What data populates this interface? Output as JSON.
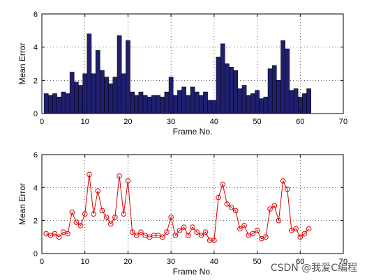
{
  "watermark": "CSDN @我爱C编程",
  "colors": {
    "bar_fill": "#1f1f6e",
    "line_color": "#dd0000",
    "background": "#ffffff"
  },
  "chart_data": [
    {
      "type": "bar",
      "xlabel": "Frame No.",
      "ylabel": "Mean Error",
      "xlim": [
        0,
        70
      ],
      "ylim": [
        0,
        6
      ],
      "xticks": [
        0,
        10,
        20,
        30,
        40,
        50,
        60,
        70
      ],
      "yticks": [
        0,
        2,
        4,
        6
      ],
      "grid": true,
      "x": [
        1,
        2,
        3,
        4,
        5,
        6,
        7,
        8,
        9,
        10,
        11,
        12,
        13,
        14,
        15,
        16,
        17,
        18,
        19,
        20,
        21,
        22,
        23,
        24,
        25,
        26,
        27,
        28,
        29,
        30,
        31,
        32,
        33,
        34,
        35,
        36,
        37,
        38,
        39,
        40,
        41,
        42,
        43,
        44,
        45,
        46,
        47,
        48,
        49,
        50,
        51,
        52,
        53,
        54,
        55,
        56,
        57,
        58,
        59,
        60,
        61,
        62
      ],
      "values": [
        1.2,
        1.1,
        1.2,
        1.0,
        1.3,
        1.2,
        2.5,
        1.9,
        1.7,
        2.4,
        4.8,
        2.4,
        3.8,
        2.6,
        2.2,
        1.8,
        2.2,
        4.7,
        2.4,
        4.4,
        1.3,
        1.1,
        1.3,
        1.1,
        1.0,
        1.1,
        1.1,
        1.0,
        1.3,
        2.2,
        1.1,
        1.4,
        1.6,
        1.1,
        1.6,
        1.3,
        1.1,
        1.3,
        0.8,
        0.8,
        3.4,
        4.2,
        3.0,
        2.8,
        2.6,
        1.5,
        1.7,
        1.1,
        1.2,
        1.4,
        0.9,
        1.0,
        2.7,
        2.9,
        2.0,
        4.4,
        3.9,
        1.4,
        1.5,
        1.0,
        1.2,
        1.5
      ]
    },
    {
      "type": "line",
      "xlabel": "Frame No.",
      "ylabel": "Mean Error",
      "xlim": [
        0,
        70
      ],
      "ylim": [
        0,
        6
      ],
      "xticks": [
        0,
        10,
        20,
        30,
        40,
        50,
        60,
        70
      ],
      "yticks": [
        0,
        2,
        4,
        6
      ],
      "grid": true,
      "marker": "circle",
      "x": [
        1,
        2,
        3,
        4,
        5,
        6,
        7,
        8,
        9,
        10,
        11,
        12,
        13,
        14,
        15,
        16,
        17,
        18,
        19,
        20,
        21,
        22,
        23,
        24,
        25,
        26,
        27,
        28,
        29,
        30,
        31,
        32,
        33,
        34,
        35,
        36,
        37,
        38,
        39,
        40,
        41,
        42,
        43,
        44,
        45,
        46,
        47,
        48,
        49,
        50,
        51,
        52,
        53,
        54,
        55,
        56,
        57,
        58,
        59,
        60,
        61,
        62
      ],
      "values": [
        1.2,
        1.1,
        1.2,
        1.0,
        1.3,
        1.2,
        2.5,
        1.9,
        1.7,
        2.4,
        4.8,
        2.4,
        3.8,
        2.6,
        2.2,
        1.8,
        2.2,
        4.7,
        2.4,
        4.4,
        1.3,
        1.1,
        1.3,
        1.1,
        1.0,
        1.1,
        1.1,
        1.0,
        1.3,
        2.2,
        1.1,
        1.4,
        1.6,
        1.1,
        1.6,
        1.3,
        1.1,
        1.3,
        0.8,
        0.8,
        3.4,
        4.2,
        3.0,
        2.8,
        2.6,
        1.5,
        1.7,
        1.1,
        1.2,
        1.4,
        0.9,
        1.0,
        2.7,
        2.9,
        2.0,
        4.4,
        3.9,
        1.4,
        1.5,
        1.0,
        1.2,
        1.5
      ]
    }
  ]
}
